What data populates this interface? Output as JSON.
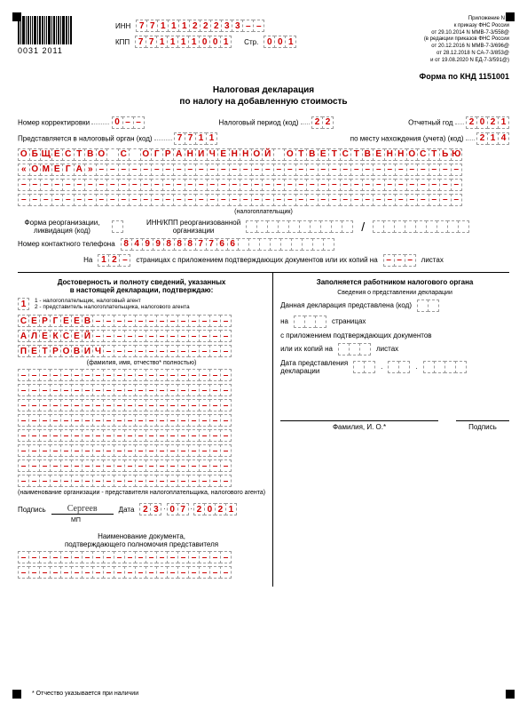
{
  "barcode_text": "0031  2011",
  "header": {
    "inn_label": "ИНН",
    "inn": [
      "7",
      "7",
      "1",
      "1",
      "1",
      "2",
      "2",
      "2",
      "3",
      "3",
      "–",
      "–"
    ],
    "kpp_label": "КПП",
    "kpp": [
      "7",
      "7",
      "1",
      "1",
      "1",
      "1",
      "0",
      "0",
      "1"
    ],
    "page_label": "Стр.",
    "page": [
      "0",
      "0",
      "1"
    ],
    "appendix": [
      "Приложение N 1",
      "к приказу ФНС России",
      "от 29.10.2014 N ММВ-7-3/558@",
      "(в редакции приказов ФНС России",
      "от 20.12.2016 N ММВ-7-3/696@",
      "от 28.12.2018 N СА-7-3/853@",
      "и от 19.08.2020 N ЕД-7-3/591@)"
    ]
  },
  "form_code": "Форма по КНД 1151001",
  "title1": "Налоговая декларация",
  "title2": "по налогу на добавленную стоимость",
  "corr": {
    "label": "Номер корректировки",
    "v": [
      "0",
      "–",
      "–"
    ]
  },
  "period": {
    "label": "Налоговый период (код)",
    "v": [
      "2",
      "2"
    ]
  },
  "year": {
    "label": "Отчетный год",
    "v": [
      "2",
      "0",
      "2",
      "1"
    ]
  },
  "authority": {
    "label": "Представляется в налоговый орган (код)",
    "v": [
      "7",
      "7",
      "1",
      "1"
    ]
  },
  "location": {
    "label": "по месту нахождения (учета) (код)",
    "v": [
      "2",
      "1",
      "4"
    ]
  },
  "taxpayer_label": "(налогоплательщик)",
  "name_rows": [
    [
      "О",
      "Б",
      "Щ",
      "Е",
      "С",
      "Т",
      "В",
      "О",
      "",
      "С",
      "",
      "О",
      "Г",
      "Р",
      "А",
      "Н",
      "И",
      "Ч",
      "Е",
      "Н",
      "Н",
      "О",
      "Й",
      "",
      "О",
      "Т",
      "В",
      "Е",
      "Т",
      "С",
      "Т",
      "В",
      "Е",
      "Н",
      "Н",
      "О",
      "С",
      "Т",
      "Ь",
      "Ю"
    ],
    [
      "«",
      "О",
      "М",
      "Е",
      "Г",
      "А",
      "»",
      "–",
      "–",
      "–",
      "–",
      "–",
      "–",
      "–",
      "–",
      "–",
      "–",
      "–",
      "–",
      "–",
      "–",
      "–",
      "–",
      "–",
      "–",
      "–",
      "–",
      "–",
      "–",
      "–",
      "–",
      "–",
      "–",
      "–",
      "–",
      "–",
      "–",
      "–",
      "–",
      "–"
    ],
    [
      "–",
      "–",
      "–",
      "–",
      "–",
      "–",
      "–",
      "–",
      "–",
      "–",
      "–",
      "–",
      "–",
      "–",
      "–",
      "–",
      "–",
      "–",
      "–",
      "–",
      "–",
      "–",
      "–",
      "–",
      "–",
      "–",
      "–",
      "–",
      "–",
      "–",
      "–",
      "–",
      "–",
      "–",
      "–",
      "–",
      "–",
      "–",
      "–",
      "–"
    ],
    [
      "–",
      "–",
      "–",
      "–",
      "–",
      "–",
      "–",
      "–",
      "–",
      "–",
      "–",
      "–",
      "–",
      "–",
      "–",
      "–",
      "–",
      "–",
      "–",
      "–",
      "–",
      "–",
      "–",
      "–",
      "–",
      "–",
      "–",
      "–",
      "–",
      "–",
      "–",
      "–",
      "–",
      "–",
      "–",
      "–",
      "–",
      "–",
      "–",
      "–"
    ]
  ],
  "reorg": {
    "label1": "Форма реорганизации,",
    "label2": "ликвидация (код)",
    "label3": "ИНН/КПП реорганизованной",
    "label4": "организации"
  },
  "phone": {
    "label": "Номер контактного телефона",
    "v": [
      "8",
      "4",
      "9",
      "9",
      "8",
      "8",
      "8",
      "7",
      "7",
      "6",
      "6",
      "",
      "",
      "",
      "",
      "",
      "",
      "",
      "",
      ""
    ]
  },
  "pages": {
    "l1": "На",
    "v": [
      "1",
      "2",
      "–"
    ],
    "l2": "страницах с приложением подтверждающих документов или их копий на",
    "v2": [
      "–",
      "–",
      "–"
    ],
    "l3": "листах"
  },
  "left": {
    "title": "Достоверность и полноту сведений, указанных\nв настоящей декларации, подтверждаю:",
    "code": "1",
    "note": "1 - налогоплательщик, налоговый агент\n2 - представитель налогоплательщика, налогового агента",
    "fio": [
      [
        "С",
        "Е",
        "Р",
        "Г",
        "Е",
        "Е",
        "В",
        "–",
        "–",
        "–",
        "–",
        "–",
        "–",
        "–",
        "–",
        "–",
        "–",
        "–",
        "–",
        "–"
      ],
      [
        "А",
        "Л",
        "Е",
        "К",
        "С",
        "Е",
        "Й",
        "–",
        "–",
        "–",
        "–",
        "–",
        "–",
        "–",
        "–",
        "–",
        "–",
        "–",
        "–",
        "–"
      ],
      [
        "П",
        "Е",
        "Т",
        "Р",
        "О",
        "В",
        "И",
        "Ч",
        "–",
        "–",
        "–",
        "–",
        "–",
        "–",
        "–",
        "–",
        "–",
        "–",
        "–",
        "–"
      ]
    ],
    "fio_label": "(фамилия, имя, отчество* полностью)",
    "org_label": "(наименование организации - представителя налогоплательщика, налогового агента)",
    "sig_label": "Подпись",
    "sig_value": "Сергеев",
    "date_label": "Дата",
    "date": [
      "2",
      "3",
      ".",
      "0",
      "7",
      ".",
      "2",
      "0",
      "2",
      "1"
    ],
    "mp": "МП",
    "doc_title": "Наименование документа,\nподтверждающего полномочия представителя"
  },
  "right": {
    "title": "Заполняется работником налогового органа",
    "subtitle": "Сведения о представлении декларации",
    "l1": "Данная декларация представлена (код)",
    "l2a": "на",
    "l2b": "страницах",
    "l3": "с приложением подтверждающих документов",
    "l4a": "или их копий на",
    "l4b": "листах",
    "l5": "Дата представления\nдекларации",
    "fio": "Фамилия, И. О.*",
    "sig": "Подпись"
  },
  "footnote": "* Отчество указывается при наличии"
}
